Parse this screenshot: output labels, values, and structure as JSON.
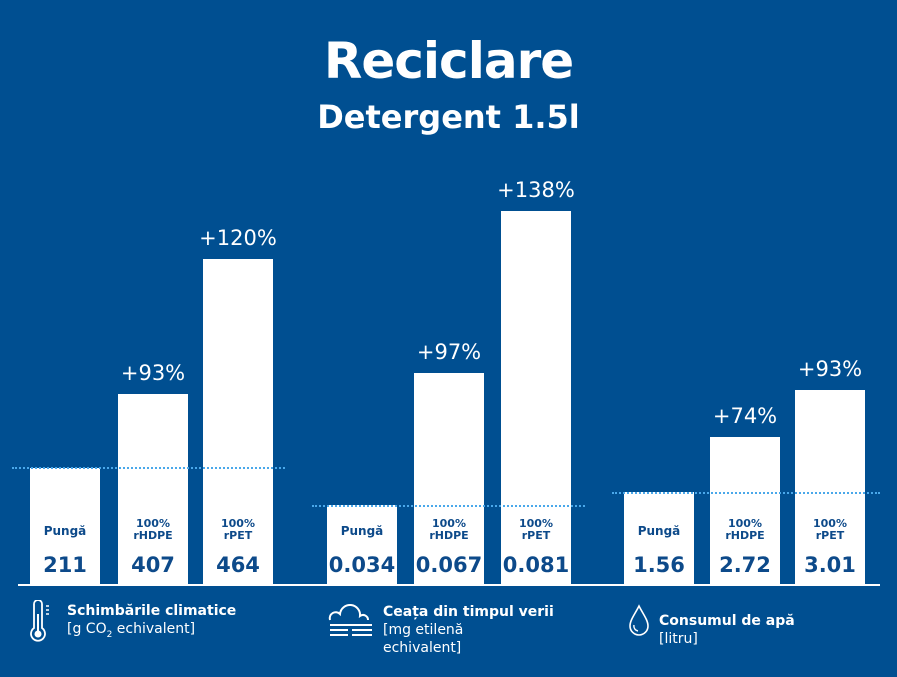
{
  "header": {
    "title": "Reciclare",
    "subtitle": "Detergent 1.5l"
  },
  "chart_data": [
    {
      "type": "bar",
      "title": "Schimbările climatice",
      "unit": "[g CO2 echivalent]",
      "categories": [
        "Pungă",
        "100% rHDPE",
        "100% rPET"
      ],
      "values": [
        211,
        407,
        464
      ],
      "value_labels": [
        "211",
        "407",
        "464"
      ],
      "change_labels": [
        "",
        "+93%",
        "+120%"
      ]
    },
    {
      "type": "bar",
      "title": "Ceața din timpul verii",
      "unit": "[mg etilenă echivalent]",
      "categories": [
        "Pungă",
        "100% rHDPE",
        "100% rPET"
      ],
      "values": [
        0.034,
        0.067,
        0.081
      ],
      "value_labels": [
        "0.034",
        "0.067",
        "0.081"
      ],
      "change_labels": [
        "",
        "+97%",
        "+138%"
      ]
    },
    {
      "type": "bar",
      "title": "Consumul de apă",
      "unit": "[litru]",
      "categories": [
        "Pungă",
        "100% rHDPE",
        "100% rPET"
      ],
      "values": [
        1.56,
        2.72,
        3.01
      ],
      "value_labels": [
        "1.56",
        "2.72",
        "3.01"
      ],
      "change_labels": [
        "",
        "+74%",
        "+93%"
      ]
    }
  ],
  "legend": [
    {
      "icon": "thermometer-icon",
      "title": "Schimbările climatice",
      "unit_a": "[g CO",
      "unit_sub": "2",
      "unit_b": " echivalent]"
    },
    {
      "icon": "fog-icon",
      "title": "Ceața din timpul verii",
      "unit_a": "[mg etilenă",
      "unit_b": "echivalent]"
    },
    {
      "icon": "water-drop-icon",
      "title": "Consumul de apă",
      "unit_a": "[litru]"
    }
  ],
  "bar_labels": {
    "l0": "Pungă",
    "l1a": "100%",
    "l1b": "rHDPE",
    "l2a": "100%",
    "l2b": "rPET"
  }
}
